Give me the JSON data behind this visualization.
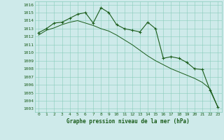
{
  "x": [
    0,
    1,
    2,
    3,
    4,
    5,
    6,
    7,
    8,
    9,
    10,
    11,
    12,
    13,
    14,
    15,
    16,
    17,
    18,
    19,
    20,
    21,
    22,
    23
  ],
  "line1": [
    1012.5,
    1013.0,
    1013.7,
    1013.8,
    1014.3,
    1014.8,
    1015.0,
    1013.7,
    1015.6,
    1015.0,
    1013.5,
    1013.0,
    1012.8,
    1012.6,
    1013.8,
    1013.0,
    1009.3,
    1009.5,
    1009.3,
    1008.8,
    1008.0,
    1007.9,
    1005.3,
    1003.2
  ],
  "line2": [
    1012.2,
    1012.8,
    1013.1,
    1013.5,
    1013.8,
    1014.0,
    1013.7,
    1013.4,
    1013.0,
    1012.7,
    1012.2,
    1011.6,
    1011.0,
    1010.3,
    1009.6,
    1009.0,
    1008.5,
    1008.0,
    1007.6,
    1007.2,
    1006.8,
    1006.3,
    1005.5,
    1003.2
  ],
  "bg_color": "#ceeaea",
  "grid_color": "#88ccbb",
  "line_color": "#1a5c1a",
  "xlabel": "Graphe pression niveau de la mer (hPa)",
  "yticks": [
    1003,
    1004,
    1005,
    1006,
    1007,
    1008,
    1009,
    1010,
    1011,
    1012,
    1013,
    1014,
    1015,
    1016
  ],
  "xtick_labels": [
    "0",
    "1",
    "2",
    "3",
    "4",
    "5",
    "6",
    "7",
    "8",
    "9",
    "10",
    "11",
    "12",
    "13",
    "14",
    "15",
    "16",
    "17",
    "18",
    "19",
    "20",
    "21",
    "22",
    "23"
  ],
  "ylim": [
    1002.6,
    1016.4
  ],
  "xlim": [
    -0.5,
    23.5
  ]
}
